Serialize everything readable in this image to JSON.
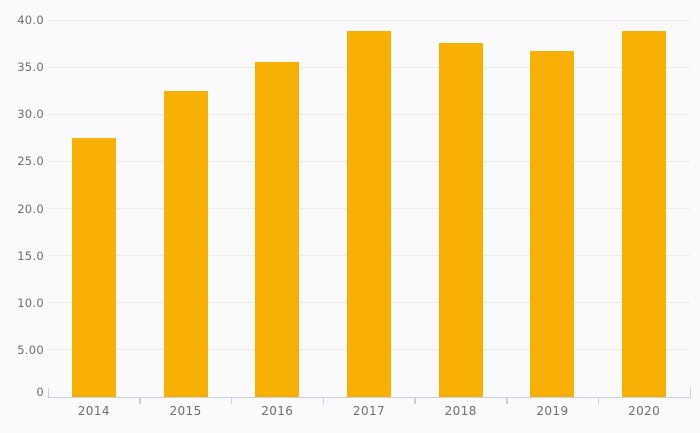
{
  "chart_data": {
    "type": "bar",
    "categories": [
      "2014",
      "2015",
      "2016",
      "2017",
      "2018",
      "2019",
      "2020"
    ],
    "values": [
      27.5,
      32.5,
      35.5,
      38.8,
      37.6,
      36.7,
      38.8
    ],
    "ylim": [
      0,
      40
    ],
    "yticks": [
      {
        "value": 0,
        "label": "0"
      },
      {
        "value": 5,
        "label": "5.00"
      },
      {
        "value": 10,
        "label": "10.0"
      },
      {
        "value": 15,
        "label": "15.0"
      },
      {
        "value": 20,
        "label": "20.0"
      },
      {
        "value": 25,
        "label": "25.0"
      },
      {
        "value": 30,
        "label": "30.0"
      },
      {
        "value": 35,
        "label": "35.0"
      },
      {
        "value": 40,
        "label": "40.0"
      }
    ],
    "grid": true,
    "legend": false
  },
  "colors": {
    "background": "#FAFAFA",
    "bar": "#F9B005",
    "gridline": "#EBEBEB",
    "axis_line": "#C7CFDF",
    "tick_label": "#6E6E6E"
  }
}
